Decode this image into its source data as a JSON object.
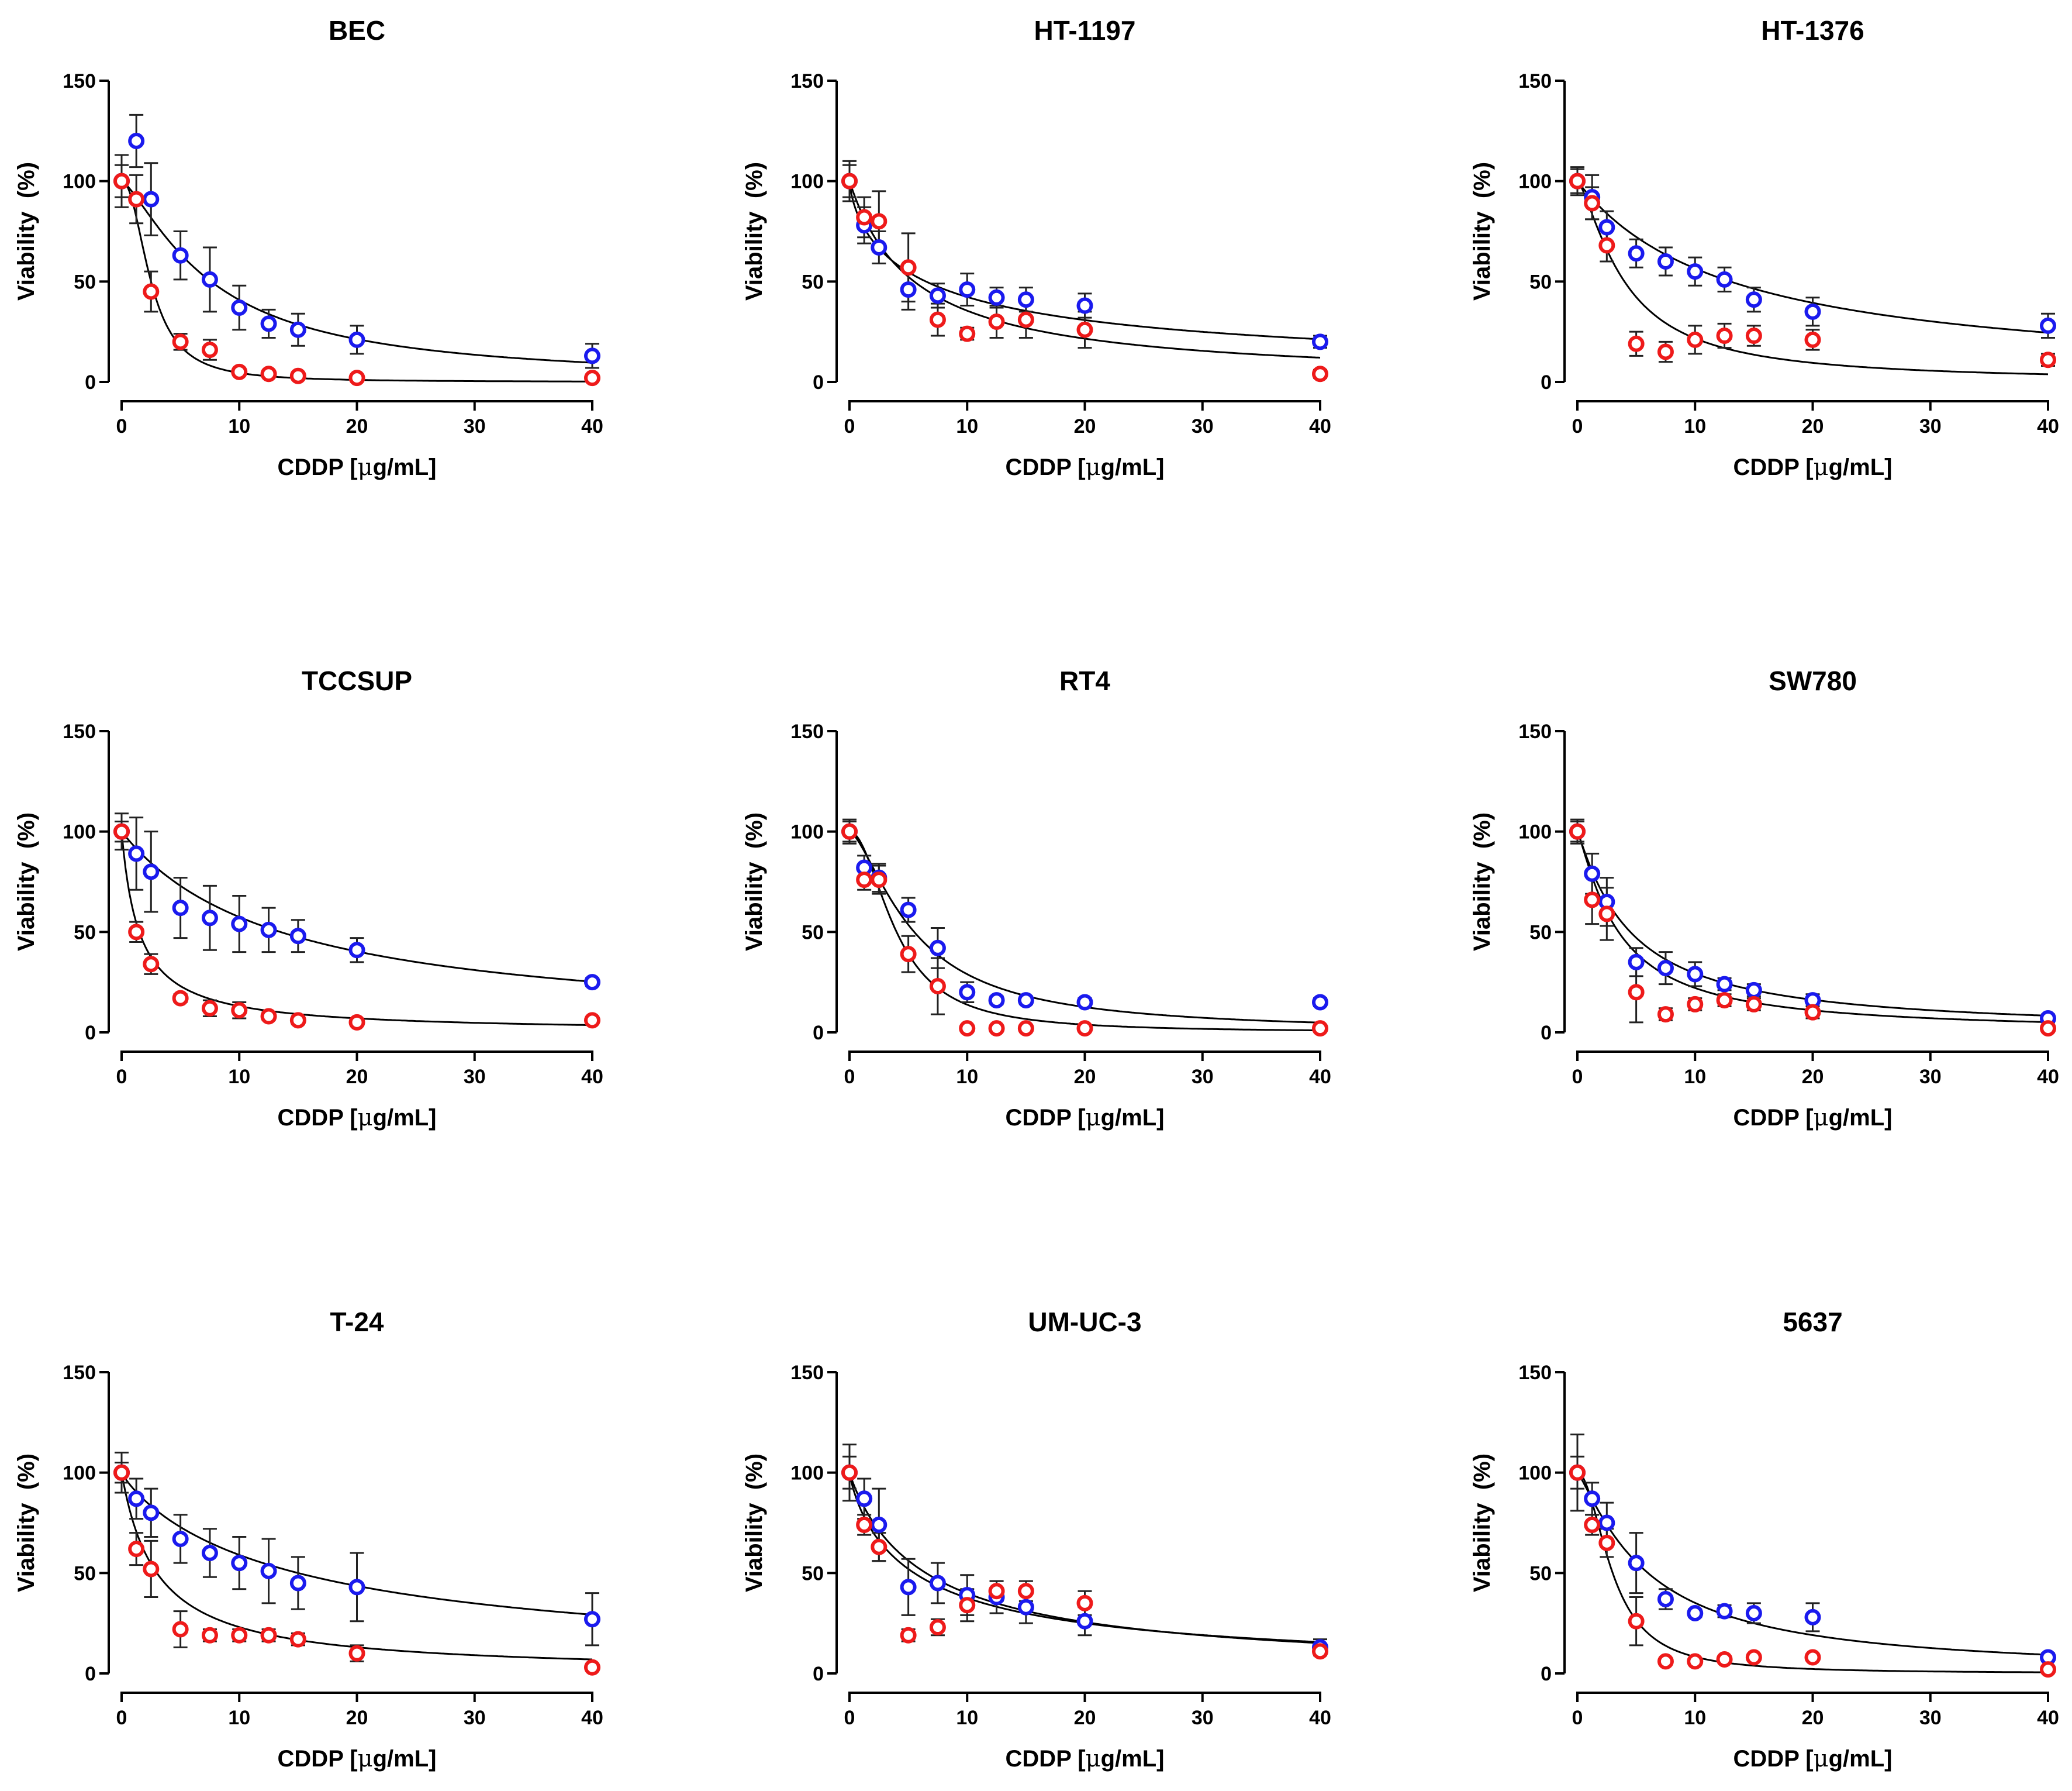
{
  "figure": {
    "x_unit_prefix": "CDDP [",
    "x_unit_mu": "μ",
    "x_unit_suffix": "g/mL]",
    "colors": {
      "series_a": "#1a1aee",
      "series_b": "#ee1a1a",
      "fit": "#000000",
      "error_bar": "#222222"
    }
  },
  "chart_data": [
    {
      "type": "scatter",
      "title": "BEC",
      "xlabel": "CDDP [μg/mL]",
      "ylabel": "Viability  (%)",
      "xlim": [
        0,
        40
      ],
      "ylim": [
        0,
        150
      ],
      "xticks": [
        0,
        10,
        20,
        30,
        40
      ],
      "yticks": [
        0,
        50,
        100,
        150
      ],
      "x": [
        0,
        1.25,
        2.5,
        5,
        7.5,
        10,
        12.5,
        15,
        20,
        40
      ],
      "series": [
        {
          "color": "#1a1aee",
          "values": [
            100,
            120,
            91,
            63,
            51,
            37,
            29,
            26,
            21,
            13
          ],
          "errors": [
            13,
            13,
            18,
            12,
            16,
            11,
            7,
            8,
            7,
            6
          ],
          "fit": {
            "ic50": 7.6,
            "hill": 1.35
          }
        },
        {
          "color": "#ee1a1a",
          "values": [
            100,
            91,
            45,
            20,
            16,
            5,
            4,
            3,
            2,
            2
          ],
          "errors": [
            8,
            12,
            10,
            4,
            5,
            1,
            1,
            1,
            1,
            1
          ],
          "fit": {
            "ic50": 2.5,
            "hill": 2.2
          }
        }
      ]
    },
    {
      "type": "scatter",
      "title": "HT-1197",
      "xlabel": "CDDP [μg/mL]",
      "ylabel": "Viability  (%)",
      "xlim": [
        0,
        40
      ],
      "ylim": [
        0,
        150
      ],
      "xticks": [
        0,
        10,
        20,
        30,
        40
      ],
      "yticks": [
        0,
        50,
        100,
        150
      ],
      "x": [
        0,
        1.25,
        2.5,
        5,
        7.5,
        10,
        12.5,
        15,
        20,
        40
      ],
      "series": [
        {
          "color": "#1a1aee",
          "values": [
            100,
            78,
            67,
            46,
            43,
            46,
            42,
            41,
            38,
            20
          ],
          "errors": [
            10,
            9,
            8,
            10,
            6,
            8,
            5,
            6,
            6,
            3
          ],
          "fit": {
            "ic50": 6.5,
            "hill": 0.72
          }
        },
        {
          "color": "#ee1a1a",
          "values": [
            100,
            82,
            80,
            57,
            31,
            24,
            30,
            31,
            26,
            4
          ],
          "errors": [
            8,
            10,
            15,
            17,
            8,
            3,
            8,
            9,
            9,
            2
          ],
          "fit": {
            "ic50": 5.5,
            "hill": 1.0
          }
        }
      ]
    },
    {
      "type": "scatter",
      "title": "HT-1376",
      "xlabel": "CDDP [μg/mL]",
      "ylabel": "Viability  (%)",
      "xlim": [
        0,
        40
      ],
      "ylim": [
        0,
        150
      ],
      "xticks": [
        0,
        10,
        20,
        30,
        40
      ],
      "yticks": [
        0,
        50,
        100,
        150
      ],
      "x": [
        0,
        1.25,
        2.5,
        5,
        7.5,
        10,
        12.5,
        15,
        20,
        40
      ],
      "series": [
        {
          "color": "#1a1aee",
          "values": [
            100,
            92,
            77,
            64,
            60,
            55,
            51,
            41,
            35,
            28
          ],
          "errors": [
            7,
            11,
            8,
            7,
            7,
            7,
            6,
            6,
            7,
            6
          ],
          "fit": {
            "ic50": 13,
            "hill": 1.0
          }
        },
        {
          "color": "#ee1a1a",
          "values": [
            100,
            89,
            68,
            19,
            15,
            21,
            23,
            23,
            21,
            11
          ],
          "errors": [
            6,
            8,
            8,
            6,
            5,
            7,
            6,
            5,
            5,
            3
          ],
          "fit": {
            "ic50": 4.0,
            "hill": 1.4
          }
        }
      ]
    },
    {
      "type": "scatter",
      "title": "TCCSUP",
      "xlabel": "CDDP [μg/mL]",
      "ylabel": "Viability  (%)",
      "xlim": [
        0,
        40
      ],
      "ylim": [
        0,
        150
      ],
      "xticks": [
        0,
        10,
        20,
        30,
        40
      ],
      "yticks": [
        0,
        50,
        100,
        150
      ],
      "x": [
        0,
        1.25,
        2.5,
        5,
        7.5,
        10,
        12.5,
        15,
        20,
        40
      ],
      "series": [
        {
          "color": "#1a1aee",
          "values": [
            100,
            89,
            80,
            62,
            57,
            54,
            51,
            48,
            41,
            25
          ],
          "errors": [
            9,
            18,
            20,
            15,
            16,
            14,
            11,
            8,
            6,
            2
          ],
          "fit": {
            "ic50": 13.5,
            "hill": 1.0
          }
        },
        {
          "color": "#ee1a1a",
          "values": [
            100,
            50,
            34,
            17,
            12,
            11,
            8,
            6,
            5,
            6
          ],
          "errors": [
            5,
            5,
            5,
            2,
            4,
            4,
            2,
            2,
            1,
            1
          ],
          "fit": {
            "ic50": 1.5,
            "hill": 1.0
          }
        }
      ]
    },
    {
      "type": "scatter",
      "title": "RT4",
      "xlabel": "CDDP [μg/mL]",
      "ylabel": "Viability  (%)",
      "xlim": [
        0,
        40
      ],
      "ylim": [
        0,
        150
      ],
      "xticks": [
        0,
        10,
        20,
        30,
        40
      ],
      "yticks": [
        0,
        50,
        100,
        150
      ],
      "x": [
        0,
        1.25,
        2.5,
        5,
        7.5,
        10,
        12.5,
        15,
        20,
        40
      ],
      "series": [
        {
          "color": "#1a1aee",
          "values": [
            100,
            82,
            77,
            61,
            42,
            20,
            16,
            16,
            15,
            15
          ],
          "errors": [
            6,
            6,
            7,
            6,
            10,
            5,
            2,
            2,
            2,
            2
          ],
          "fit": {
            "ic50": 5.5,
            "hill": 1.5
          }
        },
        {
          "color": "#ee1a1a",
          "values": [
            100,
            76,
            76,
            39,
            23,
            2,
            2,
            2,
            2,
            2
          ],
          "errors": [
            5,
            5,
            7,
            9,
            14,
            1,
            1,
            1,
            1,
            1
          ],
          "fit": {
            "ic50": 4.0,
            "hill": 2.0
          }
        }
      ]
    },
    {
      "type": "scatter",
      "title": "SW780",
      "xlabel": "CDDP [μg/mL]",
      "ylabel": "Viability  (%)",
      "xlim": [
        0,
        40
      ],
      "ylim": [
        0,
        150
      ],
      "xticks": [
        0,
        10,
        20,
        30,
        40
      ],
      "yticks": [
        0,
        50,
        100,
        150
      ],
      "x": [
        0,
        1.25,
        2.5,
        5,
        7.5,
        10,
        12.5,
        15,
        20,
        40
      ],
      "series": [
        {
          "color": "#1a1aee",
          "values": [
            100,
            79,
            65,
            35,
            32,
            29,
            24,
            21,
            16,
            7
          ],
          "errors": [
            6,
            10,
            12,
            7,
            8,
            6,
            3,
            3,
            3,
            2
          ],
          "fit": {
            "ic50": 4.5,
            "hill": 1.1
          }
        },
        {
          "color": "#ee1a1a",
          "values": [
            100,
            66,
            59,
            20,
            9,
            14,
            16,
            14,
            10,
            2
          ],
          "errors": [
            5,
            12,
            13,
            15,
            3,
            3,
            3,
            3,
            3,
            1
          ],
          "fit": {
            "ic50": 3.5,
            "hill": 1.2
          }
        }
      ]
    },
    {
      "type": "scatter",
      "title": "T-24",
      "xlabel": "CDDP [μg/mL]",
      "ylabel": "Viability  (%)",
      "xlim": [
        0,
        40
      ],
      "ylim": [
        0,
        150
      ],
      "xticks": [
        0,
        10,
        20,
        30,
        40
      ],
      "yticks": [
        0,
        50,
        100,
        150
      ],
      "x": [
        0,
        1.25,
        2.5,
        5,
        7.5,
        10,
        12.5,
        15,
        20,
        40
      ],
      "series": [
        {
          "color": "#1a1aee",
          "values": [
            100,
            87,
            80,
            67,
            60,
            55,
            51,
            45,
            43,
            27
          ],
          "errors": [
            10,
            10,
            12,
            12,
            12,
            13,
            16,
            13,
            17,
            13
          ],
          "fit": {
            "ic50": 15,
            "hill": 0.9
          }
        },
        {
          "color": "#ee1a1a",
          "values": [
            100,
            62,
            52,
            22,
            19,
            19,
            19,
            17,
            10,
            3
          ],
          "errors": [
            5,
            8,
            14,
            9,
            3,
            3,
            3,
            3,
            4,
            1
          ],
          "fit": {
            "ic50": 3.0,
            "hill": 1.0
          }
        }
      ]
    },
    {
      "type": "scatter",
      "title": "UM-UC-3",
      "xlabel": "CDDP [μg/mL]",
      "ylabel": "Viability  (%)",
      "xlim": [
        0,
        40
      ],
      "ylim": [
        0,
        150
      ],
      "xticks": [
        0,
        10,
        20,
        30,
        40
      ],
      "yticks": [
        0,
        50,
        100,
        150
      ],
      "x": [
        0,
        1.25,
        2.5,
        5,
        7.5,
        10,
        12.5,
        15,
        20,
        40
      ],
      "series": [
        {
          "color": "#1a1aee",
          "values": [
            100,
            87,
            74,
            43,
            45,
            39,
            38,
            33,
            26,
            13
          ],
          "errors": [
            14,
            10,
            18,
            14,
            10,
            10,
            8,
            8,
            7,
            4
          ],
          "fit": {
            "ic50": 6.5,
            "hill": 0.95
          }
        },
        {
          "color": "#ee1a1a",
          "values": [
            100,
            74,
            63,
            19,
            23,
            34,
            41,
            41,
            35,
            11
          ],
          "errors": [
            8,
            5,
            7,
            3,
            4,
            8,
            5,
            5,
            6,
            2
          ],
          "fit": {
            "ic50": 5.5,
            "hill": 0.85
          }
        }
      ]
    },
    {
      "type": "scatter",
      "title": "5637",
      "xlabel": "CDDP [μg/mL]",
      "ylabel": "Viability  (%)",
      "xlim": [
        0,
        40
      ],
      "ylim": [
        0,
        150
      ],
      "xticks": [
        0,
        10,
        20,
        30,
        40
      ],
      "yticks": [
        0,
        50,
        100,
        150
      ],
      "x": [
        0,
        1.25,
        2.5,
        5,
        7.5,
        10,
        12.5,
        15,
        20,
        40
      ],
      "series": [
        {
          "color": "#1a1aee",
          "values": [
            100,
            87,
            75,
            55,
            37,
            30,
            31,
            30,
            28,
            8
          ],
          "errors": [
            19,
            8,
            10,
            15,
            5,
            2,
            3,
            5,
            7,
            2
          ],
          "fit": {
            "ic50": 6.0,
            "hill": 1.2
          }
        },
        {
          "color": "#ee1a1a",
          "values": [
            100,
            74,
            65,
            26,
            6,
            6,
            7,
            8,
            8,
            2
          ],
          "errors": [
            8,
            5,
            7,
            12,
            1,
            1,
            1,
            1,
            1,
            1
          ],
          "fit": {
            "ic50": 3.0,
            "hill": 2.0
          }
        }
      ]
    }
  ]
}
